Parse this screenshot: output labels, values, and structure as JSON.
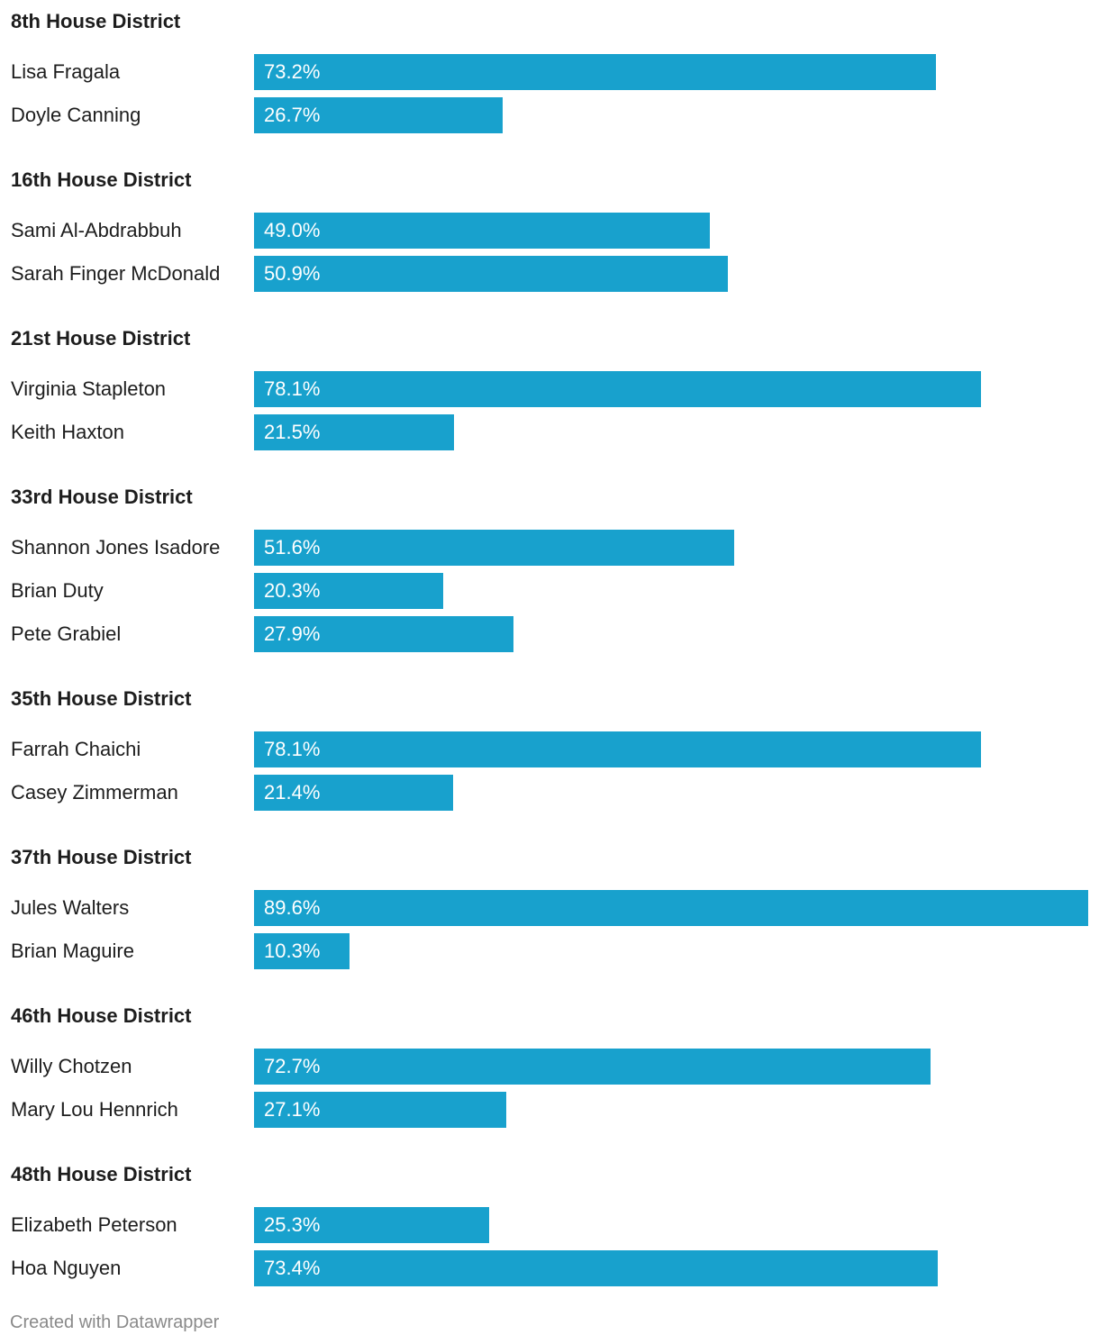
{
  "colors": {
    "bar": "#18a1cd",
    "text": "#1d1d1d",
    "value_text": "#ffffff",
    "footer_text": "#8a8a8a"
  },
  "footer": {
    "credit": "Created with Datawrapper"
  },
  "chart_data": {
    "type": "bar",
    "orientation": "horizontal",
    "value_unit": "%",
    "xlim": [
      0,
      89.6
    ],
    "grid": false,
    "legend": "none",
    "groups": [
      {
        "title": "8th House District",
        "rows": [
          {
            "name": "Lisa Fragala",
            "value": 73.2,
            "label": "73.2%"
          },
          {
            "name": "Doyle Canning",
            "value": 26.7,
            "label": "26.7%"
          }
        ]
      },
      {
        "title": "16th House District",
        "rows": [
          {
            "name": "Sami Al-Abdrabbuh",
            "value": 49.0,
            "label": "49.0%"
          },
          {
            "name": "Sarah Finger McDonald",
            "value": 50.9,
            "label": "50.9%"
          }
        ]
      },
      {
        "title": "21st House District",
        "rows": [
          {
            "name": "Virginia Stapleton",
            "value": 78.1,
            "label": "78.1%"
          },
          {
            "name": "Keith Haxton",
            "value": 21.5,
            "label": "21.5%"
          }
        ]
      },
      {
        "title": "33rd House District",
        "rows": [
          {
            "name": "Shannon Jones Isadore",
            "value": 51.6,
            "label": "51.6%"
          },
          {
            "name": "Brian Duty",
            "value": 20.3,
            "label": "20.3%"
          },
          {
            "name": "Pete Grabiel",
            "value": 27.9,
            "label": "27.9%"
          }
        ]
      },
      {
        "title": "35th House District",
        "rows": [
          {
            "name": "Farrah Chaichi",
            "value": 78.1,
            "label": "78.1%"
          },
          {
            "name": "Casey Zimmerman",
            "value": 21.4,
            "label": "21.4%"
          }
        ]
      },
      {
        "title": "37th House District",
        "rows": [
          {
            "name": "Jules Walters",
            "value": 89.6,
            "label": "89.6%"
          },
          {
            "name": "Brian Maguire",
            "value": 10.3,
            "label": "10.3%"
          }
        ]
      },
      {
        "title": "46th House District",
        "rows": [
          {
            "name": "Willy Chotzen",
            "value": 72.7,
            "label": "72.7%"
          },
          {
            "name": "Mary Lou Hennrich",
            "value": 27.1,
            "label": "27.1%"
          }
        ]
      },
      {
        "title": "48th House District",
        "rows": [
          {
            "name": "Elizabeth Peterson",
            "value": 25.3,
            "label": "25.3%"
          },
          {
            "name": "Hoa Nguyen",
            "value": 73.4,
            "label": "73.4%"
          }
        ]
      }
    ]
  }
}
